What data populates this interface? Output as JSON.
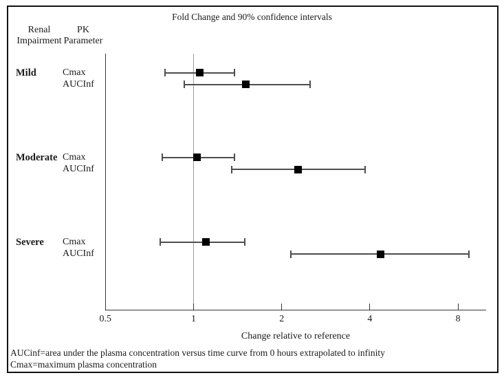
{
  "figure": {
    "title": "Fold Change and 90% confidence intervals",
    "header": {
      "col1_line1": "Renal",
      "col1_line2": "Impairment",
      "col2_line1": "PK",
      "col2_line2": "Parameter"
    },
    "xlabel": "Change relative to reference",
    "footnote1": "AUCinf=area under the plasma concentration versus time curve from 0 hours extrapolated to infinity",
    "footnote2": "Cmax=maximum plasma concentration"
  },
  "colors": {
    "frame_border": "#111111",
    "axis": "#333333",
    "reference_line": "#9a9a9a",
    "error_bar": "#4d4d4d",
    "marker": "#000000",
    "text": "#1a1a1a"
  },
  "chart_data": {
    "type": "forest",
    "title": "Fold Change and 90% confidence intervals",
    "xlabel": "Change relative to reference",
    "x_scale": "log2",
    "x_ticks": [
      0.5,
      1,
      2,
      4,
      8
    ],
    "x_tick_labels": [
      "0.5",
      "1",
      "2",
      "4",
      "8"
    ],
    "xlim": [
      0.5,
      9.9
    ],
    "reference_line": 1,
    "grid": false,
    "groups": [
      {
        "label": "Mild",
        "rows": [
          {
            "parameter": "Cmax",
            "estimate": 1.05,
            "ci_low": 0.8,
            "ci_high": 1.38
          },
          {
            "parameter": "AUCInf",
            "estimate": 1.51,
            "ci_low": 0.93,
            "ci_high": 2.5
          }
        ]
      },
      {
        "label": "Moderate",
        "rows": [
          {
            "parameter": "Cmax",
            "estimate": 1.03,
            "ci_low": 0.78,
            "ci_high": 1.38
          },
          {
            "parameter": "AUCInf",
            "estimate": 2.27,
            "ci_low": 1.35,
            "ci_high": 3.85
          }
        ]
      },
      {
        "label": "Severe",
        "rows": [
          {
            "parameter": "Cmax",
            "estimate": 1.1,
            "ci_low": 0.77,
            "ci_high": 1.5
          },
          {
            "parameter": "AUCInf",
            "estimate": 4.35,
            "ci_low": 2.15,
            "ci_high": 8.7
          }
        ]
      }
    ]
  }
}
